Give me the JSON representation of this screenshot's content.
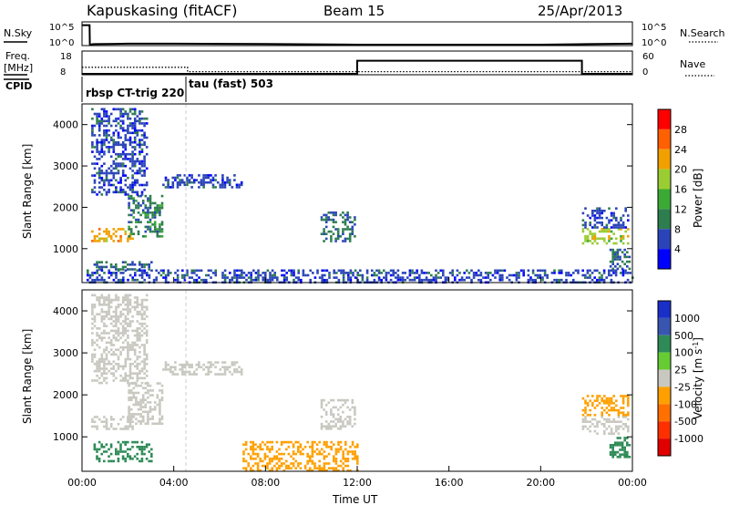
{
  "header": {
    "station": "Kapuskasing (fitACF)",
    "beam": "Beam 15",
    "date": "25/Apr/2013"
  },
  "colors": {
    "power_scale": [
      "#0000ff",
      "#2a44b8",
      "#2e7d4f",
      "#3aaa35",
      "#9acd32",
      "#f0a000",
      "#ff6000",
      "#ff0000"
    ],
    "velocity_scale": [
      "#1a2fc8",
      "#3856b0",
      "#2e8b57",
      "#66cc33",
      "#c8c8c0",
      "#ffa000",
      "#ff7000",
      "#ff3000",
      "#e00000"
    ],
    "ground_scatter": "#c8c8c0"
  },
  "chart_data": [
    {
      "type": "line",
      "name": "noise-panel",
      "left_label": "N.Sky",
      "left_ticks": [
        "10^5",
        "10^0"
      ],
      "right_ticks": [
        "10^5",
        "10^0"
      ],
      "right_label": "N.Search",
      "series": [
        {
          "line": "solid",
          "x": [
            0.0,
            0.33,
            0.34,
            0.5,
            2.0,
            4.0,
            8.0,
            12.0,
            16.0,
            20.0,
            22.0,
            24.0
          ],
          "y": [
            4.3,
            4.3,
            0.2,
            0.3,
            0.4,
            0.4,
            0.35,
            0.2,
            0.2,
            0.2,
            0.3,
            0.4
          ]
        }
      ]
    },
    {
      "type": "line",
      "name": "frequency-panel",
      "left_label_1": "Freq.",
      "left_label_2": "[MHz]",
      "left_ticks": [
        "18",
        "8"
      ],
      "right_ticks": [
        "60",
        "0"
      ],
      "right_label": "Nave",
      "series": [
        {
          "line": "solid",
          "x": [
            0.0,
            12.0,
            12.0,
            21.8,
            21.8,
            24.0
          ],
          "y": [
            8,
            8,
            14,
            14,
            8,
            8
          ]
        },
        {
          "line": "dotted",
          "x": [
            0.0,
            0.3,
            4.6,
            4.6,
            24.0
          ],
          "y": [
            11,
            11,
            11,
            9,
            9
          ]
        }
      ]
    },
    {
      "type": "table",
      "name": "cpid-bar",
      "label": "CPID",
      "segments": [
        {
          "label": "rbsp CT-trig 220",
          "start": 0.33,
          "end": 4.6
        },
        {
          "label": "tau (fast) 503",
          "start": 4.6,
          "end": 24.0
        }
      ]
    },
    {
      "type": "heatmap",
      "name": "power-panel",
      "ylabel": "Slant Range [km]",
      "yticks": [
        1000,
        2000,
        3000,
        4000
      ],
      "ylim": [
        180,
        4500
      ],
      "colorbar_label": "Power [dB]",
      "colorbar_ticks": [
        "28",
        "24",
        "20",
        "16",
        "12",
        "8",
        "4"
      ],
      "regions": [
        {
          "t0": 0.4,
          "t1": 2.2,
          "r0": 1200,
          "r1": 1500,
          "v": 22
        },
        {
          "t0": 2.0,
          "t1": 3.5,
          "r0": 1300,
          "r1": 2300,
          "v": 10
        },
        {
          "t0": 0.4,
          "t1": 2.8,
          "r0": 2300,
          "r1": 4400,
          "v": 6
        },
        {
          "t0": 3.5,
          "t1": 7.0,
          "r0": 2500,
          "r1": 2800,
          "v": 6
        },
        {
          "t0": 0.5,
          "t1": 3.0,
          "r0": 500,
          "r1": 700,
          "v": 8
        },
        {
          "t0": 10.4,
          "t1": 11.9,
          "r0": 1200,
          "r1": 1900,
          "v": 8
        },
        {
          "t0": 21.8,
          "t1": 23.8,
          "r0": 1100,
          "r1": 1500,
          "v": 18
        },
        {
          "t0": 21.8,
          "t1": 23.8,
          "r0": 1500,
          "r1": 2000,
          "v": 6
        },
        {
          "t0": 23.0,
          "t1": 23.9,
          "r0": 500,
          "r1": 1000,
          "v": 8
        },
        {
          "t0": 0.2,
          "t1": 24.0,
          "r0": 200,
          "r1": 500,
          "v": 6
        }
      ]
    },
    {
      "type": "heatmap",
      "name": "velocity-panel",
      "ylabel": "Slant Range [km]",
      "yticks": [
        1000,
        2000,
        3000,
        4000
      ],
      "ylim": [
        180,
        4500
      ],
      "colorbar_label": "Velocity [m s^-1]",
      "colorbar_ticks": [
        "1000",
        "500",
        "100",
        "25",
        "-25",
        "-100",
        "-500",
        "-1000"
      ],
      "xlabel": "Time UT",
      "xticks": [
        "00:00",
        "04:00",
        "08:00",
        "12:00",
        "16:00",
        "20:00",
        "00:00"
      ],
      "xlim": [
        0,
        24
      ],
      "regions": [
        {
          "t0": 0.4,
          "t1": 2.2,
          "r0": 1200,
          "r1": 1500,
          "v": 0
        },
        {
          "t0": 2.0,
          "t1": 3.5,
          "r0": 1300,
          "r1": 2300,
          "v": 0
        },
        {
          "t0": 0.4,
          "t1": 2.8,
          "r0": 2300,
          "r1": 4400,
          "v": 0
        },
        {
          "t0": 3.5,
          "t1": 7.0,
          "r0": 2500,
          "r1": 2800,
          "v": 0
        },
        {
          "t0": 0.5,
          "t1": 3.0,
          "r0": 400,
          "r1": 900,
          "v": 200
        },
        {
          "t0": 10.4,
          "t1": 11.9,
          "r0": 1200,
          "r1": 1900,
          "v": 0
        },
        {
          "t0": 21.8,
          "t1": 23.8,
          "r0": 1100,
          "r1": 1500,
          "v": 0
        },
        {
          "t0": 21.8,
          "t1": 23.8,
          "r0": 1500,
          "r1": 2000,
          "v": -150
        },
        {
          "t0": 23.0,
          "t1": 23.9,
          "r0": 500,
          "r1": 1000,
          "v": 200
        },
        {
          "t0": 7.0,
          "t1": 12.0,
          "r0": 200,
          "r1": 900,
          "v": -150
        }
      ]
    }
  ]
}
